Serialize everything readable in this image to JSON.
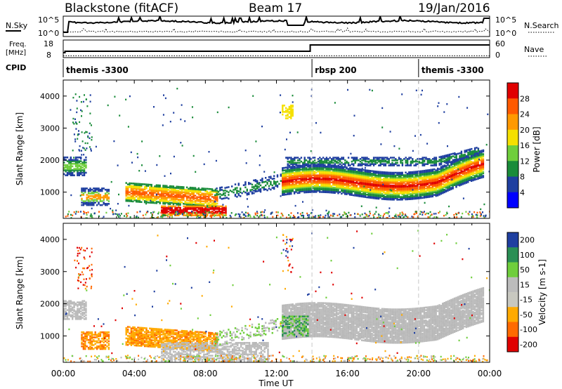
{
  "header": {
    "station_title": "Blackstone (fitACF)",
    "beam": "Beam 17",
    "date": "19/Jan/2016"
  },
  "status_panels": {
    "nsky_label": "N.Sky",
    "nsky_ticks": [
      "10^5",
      "10^0"
    ],
    "nsearch_label": "N.Search",
    "nsearch_ticks": [
      "10^5",
      "10^0"
    ],
    "freq_label_1": "Freq.",
    "freq_label_2": "[MHz]",
    "freq_ticks": [
      "18",
      "8"
    ],
    "nave_label": "Nave",
    "nave_ticks": [
      "60",
      "0"
    ],
    "cpid_label": "CPID",
    "cpid_segments": [
      {
        "label": "themis -3300",
        "start_hour": 0,
        "end_hour": 14.0
      },
      {
        "label": "rbsp 200",
        "start_hour": 14.0,
        "end_hour": 20.0
      },
      {
        "label": "themis -3300",
        "start_hour": 20.0,
        "end_hour": 24.0
      }
    ]
  },
  "chart_data": [
    {
      "type": "heatmap",
      "title": "",
      "quantity": "Power",
      "ylabel": "Slant Range [km]",
      "xlabel": "",
      "xlim_hours": [
        0,
        24
      ],
      "ylim": [
        180,
        4500
      ],
      "yticks": [
        1000,
        2000,
        3000,
        4000
      ],
      "colorbar_label": "Power [dB]",
      "colorbar_ticks": [
        "4",
        "8",
        "12",
        "16",
        "20",
        "24",
        "28"
      ],
      "colorbar_range": [
        0,
        30
      ],
      "colors": [
        "#0000ff",
        "#1f3fa0",
        "#1a8c3a",
        "#6fce3c",
        "#f5e000",
        "#ff9900",
        "#ff5a00",
        "#e00000"
      ],
      "features": [
        {
          "hours": [
            0.0,
            1.2
          ],
          "range_km": [
            1500,
            2100
          ],
          "level": "low"
        },
        {
          "hours": [
            1.0,
            2.5
          ],
          "range_km": [
            600,
            1200
          ],
          "level": "medium"
        },
        {
          "hours": [
            3.5,
            8.5
          ],
          "range_km": [
            600,
            1200
          ],
          "level": "medium-high"
        },
        {
          "hours": [
            5.5,
            9.0
          ],
          "range_km": [
            250,
            600
          ],
          "level": "high"
        },
        {
          "hours": [
            12.3,
            23.5
          ],
          "range_km": [
            900,
            2000
          ],
          "level": "high"
        }
      ]
    },
    {
      "type": "heatmap",
      "title": "",
      "quantity": "Velocity",
      "ylabel": "Slant Range [km]",
      "xlabel": "Time UT",
      "xlim_hours": [
        0,
        24
      ],
      "ylim": [
        180,
        4500
      ],
      "yticks": [
        1000,
        2000,
        3000,
        4000
      ],
      "xticks": [
        "00:00",
        "04:00",
        "08:00",
        "12:00",
        "16:00",
        "20:00",
        "00:00"
      ],
      "colorbar_label": "Velocity [m s-1]",
      "colorbar_ticks": [
        "200",
        "100",
        "50",
        "15",
        "-15",
        "-50",
        "-100",
        "-200"
      ],
      "colors": [
        "#1f3fa0",
        "#2a8f55",
        "#6fce3c",
        "#bcbcbc",
        "#c8c8c0",
        "#ffaa00",
        "#ff6a00",
        "#e00000"
      ],
      "features": [
        {
          "hours": [
            0.0,
            1.0
          ],
          "range_km": [
            1600,
            2200
          ],
          "velocity": "near-zero"
        },
        {
          "hours": [
            1.0,
            9.0
          ],
          "range_km": [
            600,
            1200
          ],
          "velocity": "negative"
        },
        {
          "hours": [
            6.0,
            12.0
          ],
          "range_km": [
            200,
            1000
          ],
          "velocity": "near-zero"
        },
        {
          "hours": [
            12.3,
            23.5
          ],
          "range_km": [
            1000,
            2000
          ],
          "velocity": "near-zero"
        }
      ]
    }
  ]
}
